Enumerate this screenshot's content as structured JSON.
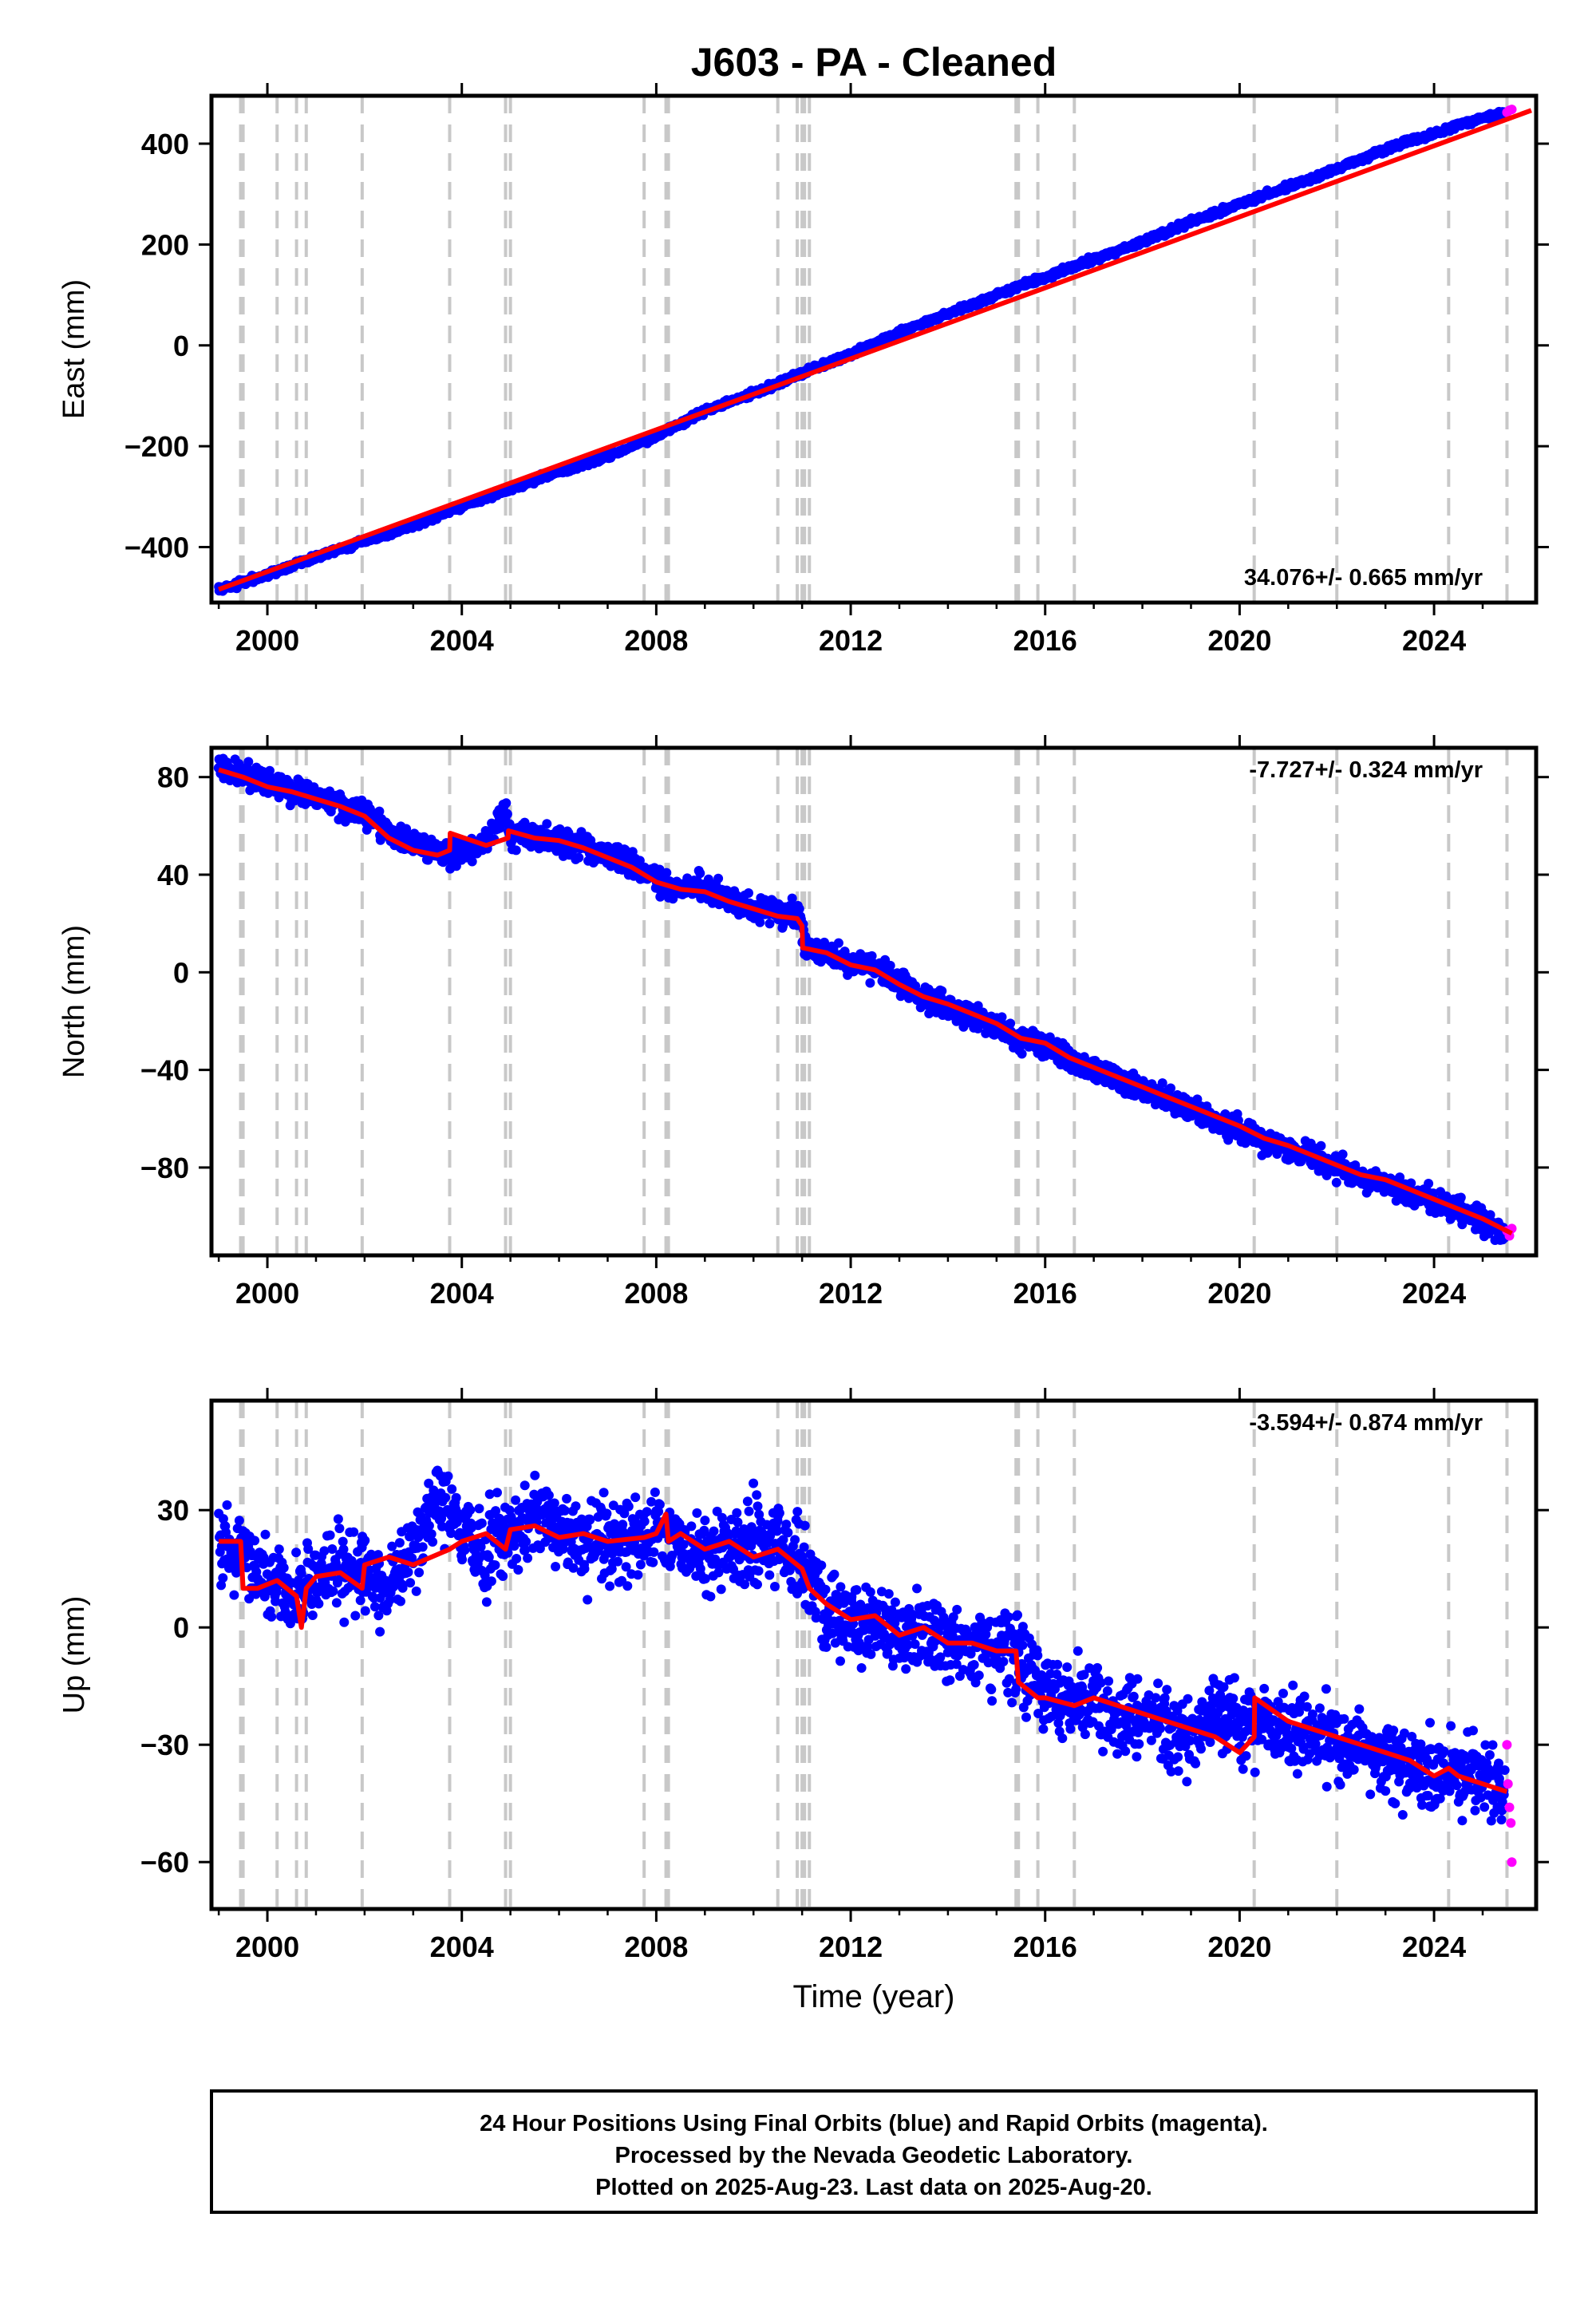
{
  "chart_data": {
    "title": "J603  - PA - Cleaned",
    "type": "scatter",
    "x_ticks": [
      "2000",
      "2004",
      "2008",
      "2012",
      "2016",
      "2020",
      "2024"
    ],
    "x_tick_values": [
      2000,
      2004,
      2008,
      2012,
      2016,
      2020,
      2024
    ],
    "xlim": [
      1998.85,
      2026.1
    ],
    "xlabel": "Time (year)",
    "equipment_change_years": [
      1999.45,
      1999.5,
      2000.2,
      2000.6,
      2000.8,
      2001.95,
      2003.75,
      2004.9,
      2005.0,
      2007.75,
      2008.2,
      2008.25,
      2010.5,
      2010.9,
      2011.0,
      2011.05,
      2011.15,
      2015.4,
      2015.45,
      2015.85,
      2016.6,
      2020.3,
      2022.0,
      2024.3,
      2025.5
    ],
    "panels": [
      {
        "ylabel": "East (mm)",
        "ylim": [
          -510,
          495
        ],
        "y_ticks": [
          "−400",
          "−200",
          "0",
          "200",
          "400"
        ],
        "y_tick_values": [
          -400,
          -200,
          0,
          200,
          400
        ],
        "rate_label": "34.076+/- 0.665 mm/yr",
        "rate_position": "bottom-right",
        "series": [
          {
            "name": "Final Orbits",
            "color": "#0000ff",
            "x": [
              1999.0,
              2000.0,
              2001.0,
              2002.0,
              2003.0,
              2004.0,
              2005.0,
              2006.0,
              2007.0,
              2008.0,
              2009.0,
              2010.0,
              2011.0,
              2012.0,
              2013.0,
              2014.0,
              2015.0,
              2016.0,
              2017.0,
              2018.0,
              2019.0,
              2020.0,
              2021.0,
              2022.0,
              2023.0,
              2024.0,
              2025.0,
              2025.45
            ],
            "y": [
              -484,
              -455,
              -420,
              -388,
              -358,
              -318,
              -285,
              -250,
              -220,
              -180,
              -130,
              -95,
              -55,
              -18,
              25,
              62,
              100,
              135,
              170,
              205,
              245,
              280,
              315,
              350,
              390,
              420,
              452,
              462
            ]
          },
          {
            "name": "Rapid Orbits",
            "color": "#ff00ff",
            "x": [
              2025.5,
              2025.55,
              2025.6
            ],
            "y": [
              462,
              466,
              468
            ]
          }
        ],
        "model": {
          "color": "#ff0000",
          "x": [
            1999.0,
            2026.0
          ],
          "y": [
            -484,
            466
          ]
        }
      },
      {
        "ylabel": "North (mm)",
        "ylim": [
          -116,
          92
        ],
        "y_ticks": [
          "−80",
          "−40",
          "0",
          "40",
          "80"
        ],
        "y_tick_values": [
          -80,
          -40,
          0,
          40,
          80
        ],
        "rate_label": "-7.727+/- 0.324 mm/yr",
        "rate_position": "top-right",
        "series": [
          {
            "name": "Final Orbits",
            "color": "#0000ff",
            "x": [
              1999.0,
              1999.5,
              2000.0,
              2000.5,
              2001.0,
              2001.5,
              2002.0,
              2002.5,
              2003.0,
              2003.5,
              2004.0,
              2004.5,
              2004.9,
              2005.0,
              2005.5,
              2006.0,
              2006.5,
              2007.0,
              2007.5,
              2008.0,
              2008.5,
              2009.0,
              2009.5,
              2010.0,
              2010.5,
              2010.95,
              2011.05,
              2011.5,
              2012.0,
              2012.5,
              2013.0,
              2013.5,
              2014.0,
              2014.5,
              2015.0,
              2015.5,
              2016.0,
              2016.5,
              2017.0,
              2017.5,
              2018.0,
              2018.5,
              2019.0,
              2019.5,
              2020.0,
              2020.5,
              2021.0,
              2021.5,
              2022.0,
              2022.5,
              2023.0,
              2023.5,
              2024.0,
              2024.5,
              2025.0,
              2025.45
            ],
            "y": [
              84,
              80,
              78,
              74,
              72,
              68,
              66,
              58,
              52,
              50,
              50,
              52,
              68,
              56,
              56,
              54,
              52,
              48,
              44,
              38,
              34,
              35,
              30,
              26,
              24,
              24,
              10,
              8,
              4,
              2,
              -4,
              -10,
              -14,
              -18,
              -22,
              -28,
              -30,
              -36,
              -40,
              -44,
              -48,
              -52,
              -56,
              -60,
              -64,
              -70,
              -72,
              -76,
              -80,
              -84,
              -86,
              -90,
              -94,
              -98,
              -102,
              -107
            ]
          },
          {
            "name": "Rapid Orbits",
            "color": "#ff00ff",
            "x": [
              2025.5,
              2025.55,
              2025.6
            ],
            "y": [
              -106,
              -108,
              -105
            ]
          }
        ],
        "model": {
          "color": "#ff0000",
          "x": [
            1999.0,
            1999.5,
            2000.0,
            2000.5,
            2001.0,
            2001.5,
            2002.0,
            2002.5,
            2003.0,
            2003.5,
            2003.75,
            2003.76,
            2004.5,
            2004.95,
            2004.96,
            2005.5,
            2006.0,
            2006.5,
            2007.0,
            2007.5,
            2008.0,
            2008.5,
            2009.0,
            2009.5,
            2010.0,
            2010.5,
            2010.9,
            2011.0,
            2011.01,
            2011.5,
            2012.0,
            2012.5,
            2013.0,
            2013.5,
            2014.0,
            2014.5,
            2015.0,
            2015.5,
            2016.0,
            2016.5,
            2017.0,
            2017.5,
            2018.0,
            2018.5,
            2019.0,
            2019.5,
            2020.0,
            2020.5,
            2021.0,
            2021.5,
            2022.0,
            2022.5,
            2023.0,
            2023.5,
            2024.0,
            2024.5,
            2025.0,
            2025.6
          ],
          "y": [
            83,
            80,
            76,
            74,
            71,
            68,
            64,
            55,
            50,
            48,
            50,
            57,
            52,
            55,
            58,
            55,
            54,
            51,
            47,
            43,
            37,
            34,
            33,
            29,
            26,
            23,
            22,
            19,
            10,
            8,
            3,
            1,
            -5,
            -10,
            -13,
            -17,
            -21,
            -27,
            -29,
            -35,
            -39,
            -43,
            -47,
            -51,
            -55,
            -59,
            -63,
            -68,
            -71,
            -75,
            -79,
            -83,
            -85,
            -89,
            -93,
            -97,
            -101,
            -107
          ]
        }
      },
      {
        "ylabel": "Up (mm)",
        "ylim": [
          -72,
          58
        ],
        "y_ticks": [
          "−60",
          "−30",
          "0",
          "30"
        ],
        "y_tick_values": [
          -60,
          -30,
          0,
          30
        ],
        "rate_label": "-3.594+/- 0.874 mm/yr",
        "rate_position": "top-right",
        "series": [
          {
            "name": "Final Orbits",
            "color": "#0000ff",
            "x": [
              1999.0,
              1999.5,
              2000.0,
              2000.5,
              2001.0,
              2001.5,
              2002.0,
              2002.5,
              2003.0,
              2003.5,
              2004.0,
              2004.5,
              2005.0,
              2005.5,
              2006.0,
              2006.5,
              2007.0,
              2007.5,
              2008.0,
              2008.5,
              2009.0,
              2009.5,
              2010.0,
              2010.5,
              2011.0,
              2011.5,
              2012.0,
              2012.5,
              2013.0,
              2013.5,
              2014.0,
              2014.5,
              2015.0,
              2015.5,
              2016.0,
              2016.5,
              2017.0,
              2017.5,
              2018.0,
              2018.5,
              2019.0,
              2019.5,
              2020.0,
              2020.5,
              2021.0,
              2021.5,
              2022.0,
              2022.5,
              2023.0,
              2023.5,
              2024.0,
              2024.5,
              2025.0,
              2025.45
            ],
            "y": [
              22,
              20,
              12,
              8,
              12,
              15,
              14,
              10,
              18,
              34,
              24,
              20,
              22,
              30,
              24,
              22,
              22,
              24,
              26,
              22,
              20,
              22,
              22,
              22,
              16,
              4,
              0,
              2,
              -2,
              0,
              -4,
              -6,
              -4,
              -8,
              -16,
              -20,
              -18,
              -22,
              -22,
              -26,
              -28,
              -22,
              -24,
              -24,
              -28,
              -26,
              -30,
              -30,
              -34,
              -36,
              -36,
              -38,
              -38,
              -42
            ]
          },
          {
            "name": "Rapid Orbits",
            "color": "#ff00ff",
            "x": [
              2025.5,
              2025.52,
              2025.55,
              2025.58,
              2025.6
            ],
            "y": [
              -30,
              -40,
              -46,
              -50,
              -60
            ]
          }
        ],
        "model": {
          "color": "#ff0000",
          "x": [
            1999.0,
            1999.45,
            1999.5,
            1999.8,
            2000.2,
            2000.6,
            2000.7,
            2000.8,
            2001.0,
            2001.5,
            2001.95,
            2002.0,
            2002.5,
            2003.0,
            2003.75,
            2004.0,
            2004.5,
            2004.9,
            2005.0,
            2005.5,
            2006.0,
            2006.5,
            2007.0,
            2007.75,
            2008.0,
            2008.2,
            2008.25,
            2008.5,
            2009.0,
            2009.5,
            2010.0,
            2010.5,
            2010.9,
            2011.0,
            2011.15,
            2011.5,
            2012.0,
            2012.5,
            2013.0,
            2013.5,
            2014.0,
            2014.5,
            2015.0,
            2015.4,
            2015.45,
            2015.85,
            2016.0,
            2016.6,
            2017.0,
            2017.5,
            2018.0,
            2018.5,
            2019.0,
            2019.5,
            2020.0,
            2020.3,
            2020.31,
            2021.0,
            2021.5,
            2022.0,
            2022.5,
            2023.0,
            2023.5,
            2024.0,
            2024.3,
            2024.5,
            2025.0,
            2025.5
          ],
          "y": [
            22,
            22,
            10,
            10,
            12,
            8,
            0,
            10,
            13,
            14,
            10,
            16,
            18,
            16,
            20,
            22,
            24,
            20,
            25,
            26,
            23,
            24,
            22,
            23,
            24,
            29,
            22,
            24,
            20,
            22,
            18,
            20,
            16,
            15,
            10,
            6,
            2,
            3,
            -2,
            0,
            -4,
            -4,
            -6,
            -6,
            -14,
            -18,
            -18,
            -20,
            -18,
            -20,
            -22,
            -24,
            -26,
            -28,
            -32,
            -28,
            -18,
            -24,
            -26,
            -28,
            -30,
            -32,
            -34,
            -38,
            -36,
            -38,
            -40,
            -42
          ]
        }
      }
    ],
    "note_lines": [
      "24 Hour Positions Using Final Orbits (blue) and Rapid Orbits (magenta).",
      "Processed by the Nevada Geodetic Laboratory.",
      "Plotted on 2025-Aug-23. Last data on 2025-Aug-20."
    ]
  }
}
